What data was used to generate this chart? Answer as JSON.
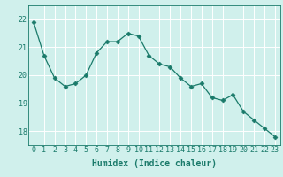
{
  "x": [
    0,
    1,
    2,
    3,
    4,
    5,
    6,
    7,
    8,
    9,
    10,
    11,
    12,
    13,
    14,
    15,
    16,
    17,
    18,
    19,
    20,
    21,
    22,
    23
  ],
  "y": [
    21.9,
    20.7,
    19.9,
    19.6,
    19.7,
    20.0,
    20.8,
    21.2,
    21.2,
    21.5,
    21.4,
    20.7,
    20.4,
    20.3,
    19.9,
    19.6,
    19.7,
    19.2,
    19.1,
    19.3,
    18.7,
    18.4,
    18.1,
    17.8
  ],
  "line_color": "#1a7a6a",
  "marker": "D",
  "marker_size": 2.5,
  "bg_color": "#d0f0ec",
  "grid_color": "#ffffff",
  "axis_color": "#1a7a6a",
  "tick_label_color": "#1a7a6a",
  "xlabel": "Humidex (Indice chaleur)",
  "ylim": [
    17.5,
    22.5
  ],
  "xlim": [
    -0.5,
    23.5
  ],
  "yticks": [
    18,
    19,
    20,
    21,
    22
  ],
  "xticks": [
    0,
    1,
    2,
    3,
    4,
    5,
    6,
    7,
    8,
    9,
    10,
    11,
    12,
    13,
    14,
    15,
    16,
    17,
    18,
    19,
    20,
    21,
    22,
    23
  ],
  "xlabel_fontsize": 7,
  "tick_fontsize": 6
}
